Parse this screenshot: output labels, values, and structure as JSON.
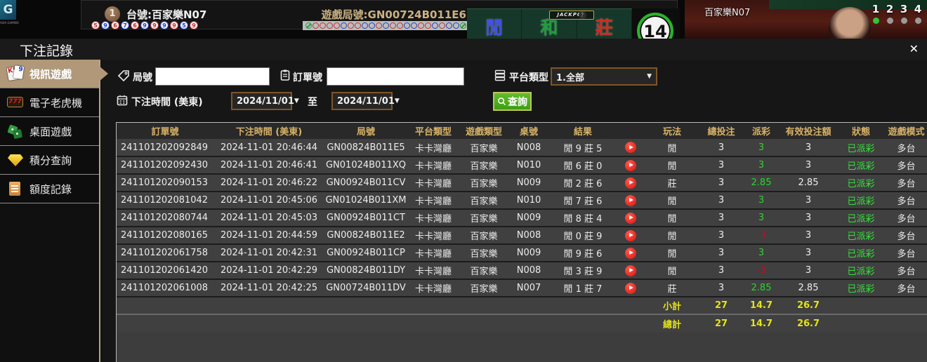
{
  "top_bar": {
    "logo_text": "ASIA GAMING",
    "table_badge": "1",
    "table_label": "台號:百家樂N07",
    "round_label": "遊戲局號:GN00724B011E6",
    "beads": [
      {
        "v": "5",
        "c": "#c03030"
      },
      {
        "v": "9",
        "c": "#2040c0"
      },
      {
        "v": "6",
        "c": "#c03030"
      },
      {
        "v": "7",
        "c": "#2040c0"
      },
      {
        "v": "6",
        "c": "#c03030"
      },
      {
        "v": "9",
        "c": "#2040c0"
      },
      {
        "v": "9",
        "c": "#c03030"
      },
      {
        "v": "9",
        "c": "#2040c0"
      },
      {
        "v": "9",
        "c": "#c03030"
      },
      {
        "v": "5",
        "c": "#2040c0"
      },
      {
        "v": "9",
        "c": "#c03030"
      }
    ],
    "road": [
      "g",
      "r",
      "r",
      "r",
      "r",
      "b",
      "r",
      "r",
      "b",
      "b",
      "r",
      "b",
      "r",
      "r",
      "b",
      "b",
      "r",
      "r",
      "b",
      "r",
      "b",
      "b",
      "g",
      "b",
      "r",
      "r"
    ],
    "bet_zones": [
      {
        "label": "閒",
        "color": "#4150e0"
      },
      {
        "label": "和",
        "color": "#1f9e3c"
      },
      {
        "label": "莊",
        "color": "#d42a20"
      }
    ],
    "jackpot_label": "JACKPOT",
    "jackpot_help": "?",
    "timer_value": "14",
    "video": {
      "title": "百家樂N07",
      "cams": [
        "1",
        "2",
        "3",
        "4"
      ],
      "active_cam": 0
    }
  },
  "modal": {
    "title": "下注記錄",
    "close_label": "✕",
    "sidebar": [
      {
        "label": "視訊遊戲",
        "icon": "cards",
        "active": true
      },
      {
        "label": "電子老虎機",
        "icon": "slot",
        "active": false
      },
      {
        "label": "桌面遊戲",
        "icon": "dice",
        "active": false
      },
      {
        "label": "積分查詢",
        "icon": "gem",
        "active": false
      },
      {
        "label": "額度記錄",
        "icon": "doc",
        "active": false
      }
    ],
    "filters": {
      "round_label": "局號",
      "round_value": "",
      "order_label": "訂單號",
      "order_value": "",
      "platform_label": "平台類型",
      "platform_value": "1.全部",
      "time_label": "下注時間 (美東)",
      "date_from": "2024/11/01",
      "to_label": "至",
      "date_to": "2024/11/01",
      "search_label": "查詢"
    },
    "table": {
      "headers": [
        "訂單號",
        "下注時間 (美東)",
        "局號",
        "平台類型",
        "遊戲類型",
        "桌號",
        "結果",
        "",
        "玩法",
        "總投注",
        "派彩",
        "有效投注額",
        "狀態",
        "遊戲模式"
      ],
      "slot_icon": "replay-icon",
      "rows": [
        {
          "order": "241101202092849",
          "time": "2024-11-01 20:46:44",
          "round": "GN00824B011E5",
          "platform": "卡卡灣廳",
          "game": "百家樂",
          "table": "N008",
          "result": "閒 9 莊 5",
          "play": "閒",
          "total": "3",
          "payout": "3",
          "payout_neg": false,
          "valid": "3",
          "status": "已派彩",
          "mode": "多台"
        },
        {
          "order": "241101202092430",
          "time": "2024-11-01 20:46:41",
          "round": "GN01024B011XQ",
          "platform": "卡卡灣廳",
          "game": "百家樂",
          "table": "N010",
          "result": "閒 6 莊 0",
          "play": "閒",
          "total": "3",
          "payout": "3",
          "payout_neg": false,
          "valid": "3",
          "status": "已派彩",
          "mode": "多台"
        },
        {
          "order": "241101202090153",
          "time": "2024-11-01 20:46:22",
          "round": "GN00924B011CV",
          "platform": "卡卡灣廳",
          "game": "百家樂",
          "table": "N009",
          "result": "閒 2 莊 6",
          "play": "莊",
          "total": "3",
          "payout": "2.85",
          "payout_neg": false,
          "valid": "2.85",
          "status": "已派彩",
          "mode": "多台"
        },
        {
          "order": "241101202081042",
          "time": "2024-11-01 20:45:06",
          "round": "GN01024B011XM",
          "platform": "卡卡灣廳",
          "game": "百家樂",
          "table": "N010",
          "result": "閒 7 莊 6",
          "play": "閒",
          "total": "3",
          "payout": "3",
          "payout_neg": false,
          "valid": "3",
          "status": "已派彩",
          "mode": "多台"
        },
        {
          "order": "241101202080744",
          "time": "2024-11-01 20:45:03",
          "round": "GN00924B011CT",
          "platform": "卡卡灣廳",
          "game": "百家樂",
          "table": "N009",
          "result": "閒 8 莊 4",
          "play": "閒",
          "total": "3",
          "payout": "3",
          "payout_neg": false,
          "valid": "3",
          "status": "已派彩",
          "mode": "多台"
        },
        {
          "order": "241101202080165",
          "time": "2024-11-01 20:44:59",
          "round": "GN00824B011E2",
          "platform": "卡卡灣廳",
          "game": "百家樂",
          "table": "N008",
          "result": "閒 0 莊 9",
          "play": "閒",
          "total": "3",
          "payout": "-3",
          "payout_neg": true,
          "valid": "3",
          "status": "已派彩",
          "mode": "多台"
        },
        {
          "order": "241101202061758",
          "time": "2024-11-01 20:42:31",
          "round": "GN00924B011CP",
          "platform": "卡卡灣廳",
          "game": "百家樂",
          "table": "N009",
          "result": "閒 9 莊 6",
          "play": "閒",
          "total": "3",
          "payout": "3",
          "payout_neg": false,
          "valid": "3",
          "status": "已派彩",
          "mode": "多台"
        },
        {
          "order": "241101202061420",
          "time": "2024-11-01 20:42:29",
          "round": "GN00824B011DY",
          "platform": "卡卡灣廳",
          "game": "百家樂",
          "table": "N008",
          "result": "閒 3 莊 9",
          "play": "閒",
          "total": "3",
          "payout": "-3",
          "payout_neg": true,
          "valid": "3",
          "status": "已派彩",
          "mode": "多台"
        },
        {
          "order": "241101202061008",
          "time": "2024-11-01 20:42:25",
          "round": "GN00724B011DV",
          "platform": "卡卡灣廳",
          "game": "百家樂",
          "table": "N007",
          "result": "閒 1 莊 7",
          "play": "莊",
          "total": "3",
          "payout": "2.85",
          "payout_neg": false,
          "valid": "2.85",
          "status": "已派彩",
          "mode": "多台"
        }
      ],
      "subtotal": {
        "label": "小計",
        "total": "27",
        "payout": "14.7",
        "valid": "26.7"
      },
      "total": {
        "label": "總計",
        "total": "27",
        "payout": "14.7",
        "valid": "26.7"
      }
    }
  },
  "colors": {
    "accent_gold": "#c9b283",
    "header_gold": "#d8b266",
    "positive_green": "#2cd42c",
    "negative_red": "#b51230",
    "status_green": "#35e23c",
    "summary_yellow": "#e3e31c",
    "sidebar_active": "#b09878",
    "road_red": "#c03030",
    "road_blue": "#2040c0",
    "road_green": "#1f9e3c"
  }
}
